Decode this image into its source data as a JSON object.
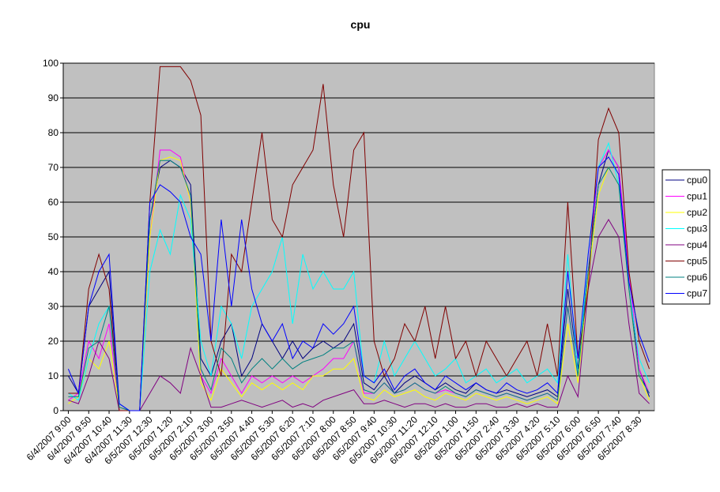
{
  "chart_data": {
    "type": "line",
    "title": "cpu",
    "categories": [
      "6/4/2007 9:00",
      null,
      "6/4/2007 9:50",
      null,
      "6/4/2007 10:40",
      null,
      "6/4/2007 11:30",
      null,
      "6/5/2007 12:30",
      null,
      "6/5/2007 1:20",
      null,
      "6/5/2007 2:10",
      null,
      "6/5/2007 3:00",
      null,
      "6/5/2007 3:50",
      null,
      "6/5/2007 4:40",
      null,
      "6/5/2007 5:30",
      null,
      "6/5/2007 6:20",
      null,
      "6/5/2007 7:10",
      null,
      "6/5/2007 8:00",
      null,
      "6/5/2007 8:50",
      null,
      "6/5/2007 9:40",
      null,
      "6/5/2007 10:30",
      null,
      "6/5/2007 11:20",
      null,
      "6/5/2007 12:10",
      null,
      "6/5/2007 1:00",
      null,
      "6/5/2007 1:50",
      null,
      "6/5/2007 2:40",
      null,
      "6/5/2007 3:30",
      null,
      "6/5/2007 4:20",
      null,
      "6/5/2007 5:10",
      null,
      "6/5/2007 6:00",
      null,
      "6/5/2007 6:50",
      null,
      "6/5/2007 7:40",
      null,
      "6/5/2007 8:30",
      null
    ],
    "series": [
      {
        "name": "cpu0",
        "color": "#000080",
        "values": [
          10,
          5,
          30,
          35,
          40,
          2,
          0,
          0,
          55,
          70,
          72,
          70,
          65,
          15,
          10,
          20,
          25,
          10,
          15,
          25,
          20,
          15,
          20,
          15,
          18,
          20,
          18,
          20,
          25,
          8,
          6,
          10,
          5,
          8,
          10,
          8,
          6,
          8,
          6,
          5,
          8,
          6,
          5,
          6,
          5,
          4,
          5,
          6,
          4,
          35,
          12,
          40,
          65,
          75,
          70,
          35,
          12,
          4
        ]
      },
      {
        "name": "cpu1",
        "color": "#ff00ff",
        "values": [
          3,
          5,
          20,
          15,
          25,
          1,
          0,
          0,
          50,
          75,
          75,
          73,
          60,
          10,
          5,
          15,
          10,
          5,
          10,
          8,
          10,
          8,
          10,
          8,
          10,
          12,
          15,
          15,
          20,
          5,
          5,
          8,
          5,
          6,
          8,
          6,
          5,
          6,
          5,
          4,
          6,
          5,
          4,
          5,
          4,
          3,
          4,
          5,
          3,
          30,
          10,
          40,
          70,
          75,
          70,
          40,
          12,
          5
        ]
      },
      {
        "name": "cpu2",
        "color": "#ffff00",
        "values": [
          2,
          4,
          15,
          12,
          20,
          1,
          0,
          0,
          50,
          72,
          73,
          72,
          60,
          8,
          3,
          12,
          8,
          4,
          8,
          6,
          8,
          6,
          8,
          6,
          10,
          10,
          12,
          12,
          15,
          4,
          3,
          6,
          4,
          5,
          6,
          4,
          3,
          5,
          4,
          3,
          5,
          4,
          3,
          4,
          3,
          2,
          3,
          4,
          2,
          25,
          8,
          38,
          62,
          70,
          65,
          35,
          10,
          3
        ]
      },
      {
        "name": "cpu3",
        "color": "#00ffff",
        "values": [
          5,
          3,
          15,
          25,
          30,
          2,
          0,
          0,
          40,
          52,
          45,
          62,
          55,
          20,
          10,
          30,
          25,
          15,
          30,
          35,
          40,
          50,
          25,
          45,
          35,
          40,
          35,
          35,
          40,
          10,
          8,
          20,
          10,
          15,
          20,
          15,
          10,
          12,
          15,
          8,
          10,
          12,
          8,
          10,
          12,
          8,
          10,
          12,
          8,
          45,
          10,
          45,
          70,
          77,
          65,
          35,
          15,
          8
        ]
      },
      {
        "name": "cpu4",
        "color": "#800080",
        "values": [
          3,
          2,
          10,
          20,
          15,
          0,
          0,
          0,
          5,
          10,
          8,
          5,
          18,
          10,
          1,
          1,
          2,
          3,
          2,
          1,
          2,
          3,
          1,
          2,
          1,
          3,
          4,
          5,
          6,
          2,
          2,
          3,
          2,
          1,
          2,
          2,
          1,
          2,
          1,
          1,
          2,
          2,
          1,
          1,
          2,
          1,
          2,
          1,
          1,
          10,
          4,
          35,
          50,
          55,
          50,
          25,
          5,
          2
        ]
      },
      {
        "name": "cpu5",
        "color": "#800000",
        "values": [
          5,
          5,
          35,
          45,
          35,
          0,
          0,
          0,
          60,
          99,
          99,
          99,
          95,
          85,
          20,
          10,
          45,
          40,
          60,
          80,
          55,
          50,
          65,
          70,
          75,
          94,
          65,
          50,
          75,
          80,
          20,
          10,
          15,
          25,
          20,
          30,
          15,
          30,
          15,
          20,
          10,
          20,
          15,
          10,
          15,
          20,
          10,
          25,
          10,
          60,
          15,
          35,
          78,
          87,
          80,
          40,
          20,
          12
        ]
      },
      {
        "name": "cpu6",
        "color": "#008080",
        "values": [
          4,
          4,
          18,
          20,
          30,
          1,
          0,
          0,
          55,
          72,
          72,
          70,
          62,
          12,
          6,
          18,
          15,
          8,
          12,
          15,
          12,
          15,
          12,
          14,
          15,
          16,
          18,
          18,
          20,
          6,
          5,
          8,
          5,
          6,
          8,
          6,
          5,
          7,
          5,
          4,
          6,
          5,
          4,
          5,
          4,
          3,
          4,
          5,
          3,
          30,
          10,
          40,
          65,
          70,
          65,
          35,
          10,
          5
        ]
      },
      {
        "name": "cpu7",
        "color": "#0000ff",
        "values": [
          12,
          5,
          30,
          40,
          45,
          2,
          0,
          0,
          60,
          65,
          63,
          60,
          50,
          45,
          20,
          55,
          30,
          55,
          35,
          25,
          20,
          25,
          15,
          20,
          18,
          25,
          22,
          25,
          30,
          10,
          8,
          12,
          6,
          10,
          12,
          8,
          6,
          10,
          8,
          6,
          8,
          6,
          5,
          8,
          6,
          5,
          6,
          8,
          5,
          40,
          15,
          45,
          70,
          73,
          68,
          37,
          22,
          14
        ]
      }
    ],
    "ylim": [
      0,
      100
    ],
    "yticks": [
      0,
      10,
      20,
      30,
      40,
      50,
      60,
      70,
      80,
      90,
      100
    ],
    "grid": true,
    "legend": "right"
  }
}
